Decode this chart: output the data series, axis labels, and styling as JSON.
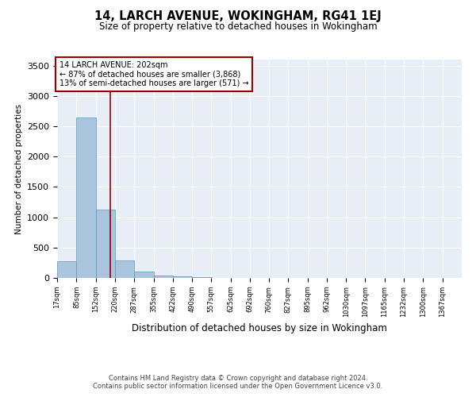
{
  "title1": "14, LARCH AVENUE, WOKINGHAM, RG41 1EJ",
  "title2": "Size of property relative to detached houses in Wokingham",
  "xlabel": "Distribution of detached houses by size in Wokingham",
  "ylabel": "Number of detached properties",
  "footer1": "Contains HM Land Registry data © Crown copyright and database right 2024.",
  "footer2": "Contains public sector information licensed under the Open Government Licence v3.0.",
  "bar_edges": [
    17,
    85,
    152,
    220,
    287,
    355,
    422,
    490,
    557,
    625,
    692,
    760,
    827,
    895,
    962,
    1030,
    1097,
    1165,
    1232,
    1300,
    1367
  ],
  "bar_heights": [
    270,
    2640,
    1130,
    290,
    105,
    35,
    25,
    15,
    0,
    0,
    0,
    0,
    0,
    0,
    0,
    0,
    0,
    0,
    0,
    0
  ],
  "bar_color": "#aac4dd",
  "bar_edge_color": "#5599bb",
  "background_color": "#e8eef5",
  "property_line_x": 202,
  "property_line_color": "#990000",
  "annotation_line1": "14 LARCH AVENUE: 202sqm",
  "annotation_line2": "← 87% of detached houses are smaller (3,868)",
  "annotation_line3": "13% of semi-detached houses are larger (571) →",
  "annotation_box_color": "#990000",
  "ylim": [
    0,
    3600
  ],
  "yticks": [
    0,
    500,
    1000,
    1500,
    2000,
    2500,
    3000,
    3500
  ],
  "xlim_min": 17,
  "xlim_max": 1435,
  "tick_labels": [
    "17sqm",
    "85sqm",
    "152sqm",
    "220sqm",
    "287sqm",
    "355sqm",
    "422sqm",
    "490sqm",
    "557sqm",
    "625sqm",
    "692sqm",
    "760sqm",
    "827sqm",
    "895sqm",
    "962sqm",
    "1030sqm",
    "1097sqm",
    "1165sqm",
    "1232sqm",
    "1300sqm",
    "1367sqm"
  ]
}
